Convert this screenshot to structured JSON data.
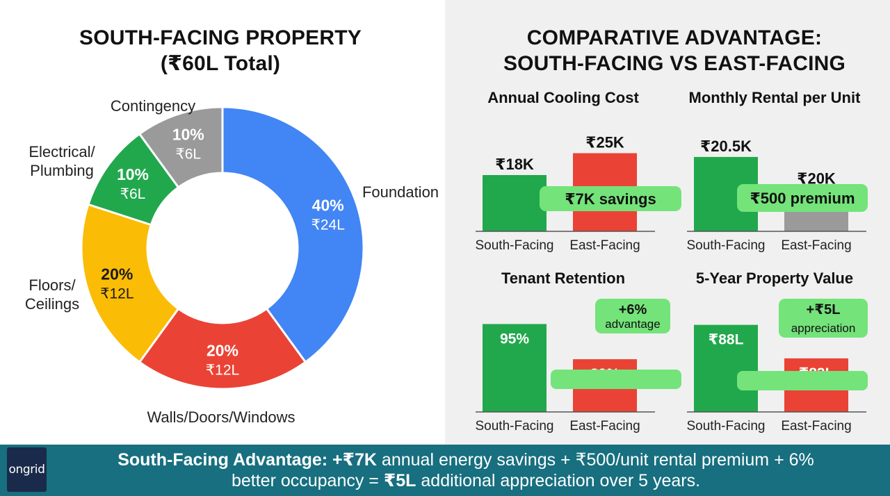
{
  "left": {
    "title_line1": "SOUTH-FACING PROPERTY",
    "title_line2": "(₹60L Total)"
  },
  "right": {
    "title_line1": "COMPARATIVE ADVANTAGE:",
    "title_line2": "SOUTH-FACING VS EAST-FACING"
  },
  "colors": {
    "blue": "#4285f4",
    "red": "#ea4335",
    "yellow": "#fbbc05",
    "green": "#21a84c",
    "gray": "#9a9a9a",
    "pill": "#74e37a",
    "footer": "#176f7f"
  },
  "chart_data": [
    {
      "type": "pie",
      "title": "SOUTH-FACING PROPERTY (₹60L Total)",
      "donut": true,
      "slices": [
        {
          "label": "Foundation",
          "percent": 40,
          "amount": "₹24L",
          "value": 24,
          "color": "#4285f4"
        },
        {
          "label": "Walls/Doors/Windows",
          "percent": 20,
          "amount": "₹12L",
          "value": 12,
          "color": "#ea4335"
        },
        {
          "label": "Floors/ Ceilings",
          "percent": 20,
          "amount": "₹12L",
          "value": 12,
          "color": "#fbbc05"
        },
        {
          "label": "Electrical/ Plumbing",
          "percent": 10,
          "amount": "₹6L",
          "value": 6,
          "color": "#21a84c"
        },
        {
          "label": "Contingency",
          "percent": 10,
          "amount": "₹6L",
          "value": 6,
          "color": "#9a9a9a"
        }
      ]
    },
    {
      "type": "bar",
      "title": "Annual Cooling Cost",
      "categories": [
        "South-Facing",
        "East-Facing"
      ],
      "values": [
        18,
        25
      ],
      "value_labels": [
        "₹18K",
        "₹25K"
      ],
      "colors": [
        "#21a84c",
        "#ea4335"
      ],
      "callout": [
        "₹7K savings"
      ],
      "ylim": [
        0,
        30
      ]
    },
    {
      "type": "bar",
      "title": "Monthly Rental per Unit",
      "categories": [
        "South-Facing",
        "East-Facing"
      ],
      "values": [
        20.5,
        20
      ],
      "value_labels": [
        "₹20.5K",
        "₹20K"
      ],
      "colors": [
        "#21a84c",
        "#9a9a9a"
      ],
      "callout": [
        "₹500 premium"
      ],
      "ylim": [
        19.35,
        20.8
      ]
    },
    {
      "type": "bar",
      "title": "Tenant Retention",
      "categories": [
        "South-Facing",
        "East-Facing"
      ],
      "values": [
        95,
        89
      ],
      "value_labels": [
        "95%",
        "89%"
      ],
      "colors": [
        "#21a84c",
        "#ea4335"
      ],
      "callout": [
        "+6%",
        "advantage"
      ],
      "ylim": [
        80,
        96
      ]
    },
    {
      "type": "bar",
      "title": "5-Year Property Value",
      "categories": [
        "South-Facing",
        "East-Facing"
      ],
      "values": [
        88,
        83
      ],
      "value_labels": [
        "₹88L",
        "₹83L"
      ],
      "colors": [
        "#21a84c",
        "#ea4335"
      ],
      "callout": [
        "+₹5L",
        "appreciation"
      ],
      "ylim": [
        75,
        89
      ]
    }
  ],
  "footer": {
    "logo_text": "ongrid",
    "line1_bold_a": "South-Facing Advantage: +₹7K",
    "line1_rest": " annual energy savings + ₹500/unit rental premium + 6%",
    "line2_a": "better occupancy = ",
    "line2_bold": "₹5L",
    "line2_rest": " additional appreciation over 5 years."
  }
}
